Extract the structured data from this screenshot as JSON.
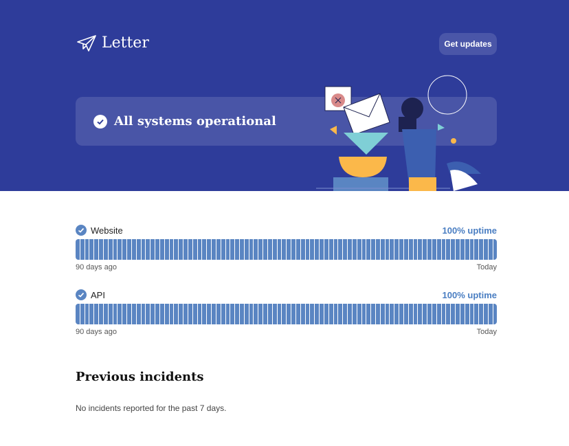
{
  "header": {
    "brand": "Letter",
    "get_updates": "Get updates",
    "status": "All systems operational"
  },
  "colors": {
    "hero": "#2e3c9a",
    "bar": "#5a85c2",
    "uptime": "#4a7ec2"
  },
  "components": [
    {
      "name": "Website",
      "uptime": "100% uptime",
      "start": "90 days ago",
      "end": "Today",
      "days": 90
    },
    {
      "name": "API",
      "uptime": "100% uptime",
      "start": "90 days ago",
      "end": "Today",
      "days": 90
    }
  ],
  "incidents": {
    "title": "Previous incidents",
    "empty": "No incidents reported for the past 7 days."
  }
}
